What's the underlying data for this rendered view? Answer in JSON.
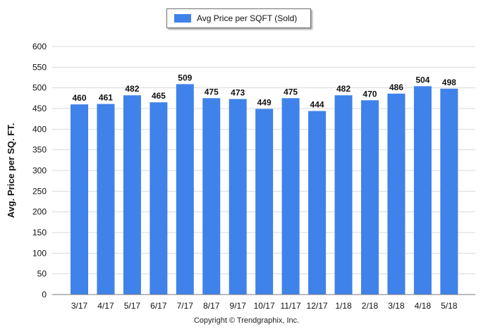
{
  "legend": {
    "label": "Avg Price per SQFT (Sold)"
  },
  "copyright": "Copyright © Trendgraphix, Inc.",
  "colors": {
    "bar": "#3f82ea",
    "grid": "#d9d9d9",
    "axis": "#7a7a7a",
    "text": "#111111"
  },
  "chart_data": {
    "type": "bar",
    "title": "",
    "xlabel": "",
    "ylabel": "Avg. Price per SQ. FT.",
    "ylim": [
      0,
      600
    ],
    "yticks": [
      0,
      50,
      100,
      150,
      200,
      250,
      300,
      350,
      400,
      450,
      500,
      550,
      600
    ],
    "grid": true,
    "legend_position": "top-center",
    "categories": [
      "3/17",
      "4/17",
      "5/17",
      "6/17",
      "7/17",
      "8/17",
      "9/17",
      "10/17",
      "11/17",
      "12/17",
      "1/18",
      "2/18",
      "3/18",
      "4/18",
      "5/18"
    ],
    "series": [
      {
        "name": "Avg Price per SQFT (Sold)",
        "values": [
          460,
          461,
          482,
          465,
          509,
          475,
          473,
          449,
          475,
          444,
          482,
          470,
          486,
          504,
          498
        ]
      }
    ]
  }
}
